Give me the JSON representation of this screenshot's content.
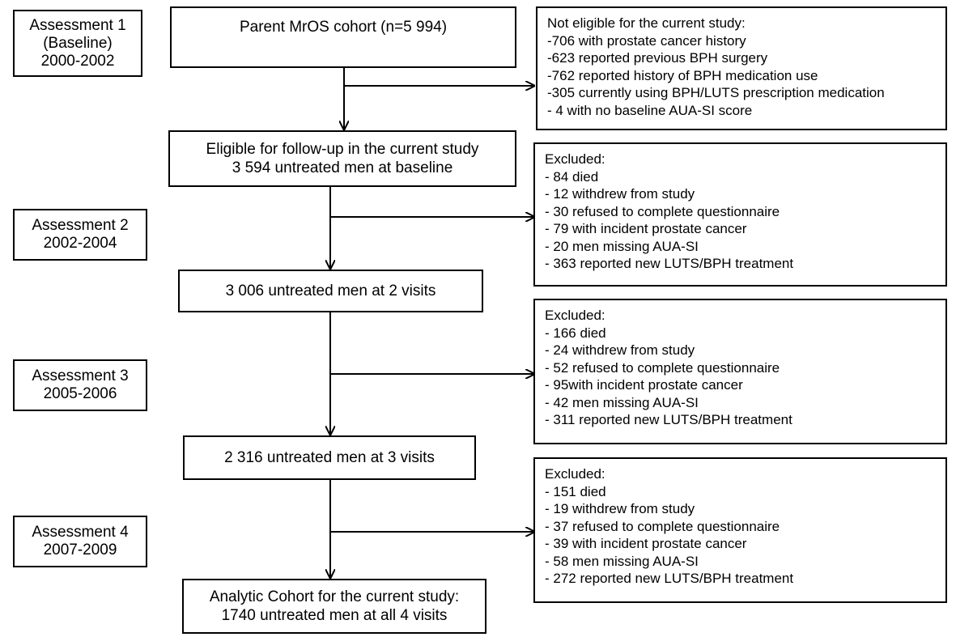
{
  "assessments": [
    {
      "lines": [
        "Assessment 1",
        "(Baseline)",
        "2000-2002"
      ]
    },
    {
      "lines": [
        "Assessment 2",
        "2002-2004"
      ]
    },
    {
      "lines": [
        "Assessment 3",
        "2005-2006"
      ]
    },
    {
      "lines": [
        "Assessment 4",
        "2007-2009"
      ]
    }
  ],
  "main_boxes": [
    {
      "lines": [
        "Parent MrOS cohort (n=5 994)"
      ]
    },
    {
      "lines": [
        "Eligible for follow-up in the current study",
        "3 594 untreated men at baseline"
      ]
    },
    {
      "lines": [
        "3 006 untreated men at 2 visits"
      ]
    },
    {
      "lines": [
        "2 316 untreated men at 3 visits"
      ]
    },
    {
      "lines": [
        "Analytic Cohort for the current study:",
        "1740 untreated men at all 4 visits"
      ]
    }
  ],
  "side_boxes": [
    {
      "lines": [
        "Not eligible for the current study:",
        "-706 with prostate cancer history",
        "-623 reported previous BPH surgery",
        "-762 reported history of BPH medication use",
        "-305 currently using BPH/LUTS prescription medication",
        "- 4 with no baseline AUA-SI score"
      ]
    },
    {
      "lines": [
        "Excluded:",
        "-  84 died",
        "-  12 withdrew from study",
        "-  30 refused to complete questionnaire",
        "-  79 with incident prostate cancer",
        "-  20 men missing AUA-SI",
        "- 363 reported new LUTS/BPH treatment"
      ]
    },
    {
      "lines": [
        "Excluded:",
        "- 166 died",
        "-  24 withdrew from study",
        "-  52 refused to complete questionnaire",
        "-  95with incident prostate cancer",
        "-  42 men missing AUA-SI",
        "- 311 reported new LUTS/BPH treatment"
      ]
    },
    {
      "lines": [
        "Excluded:",
        "- 151 died",
        "-  19 withdrew from study",
        "-  37 refused to complete questionnaire",
        "-  39 with incident prostate cancer",
        "-  58 men missing AUA-SI",
        "- 272 reported new LUTS/BPH treatment"
      ]
    }
  ]
}
